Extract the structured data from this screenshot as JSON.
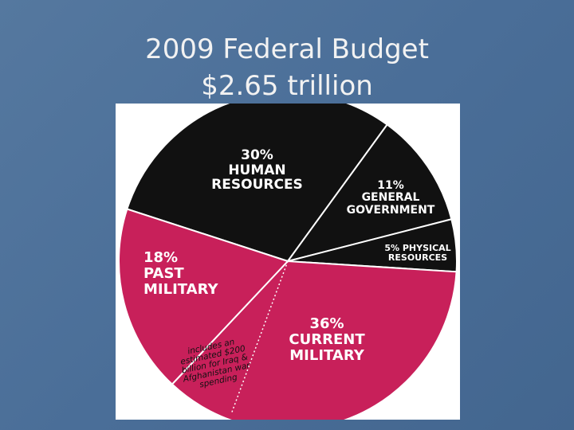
{
  "chart_data": {
    "type": "pie",
    "title": "2009 Federal Budget",
    "subtitle": "$2.65 trillion",
    "categories": [
      "HUMAN RESOURCES",
      "GENERAL GOVERNMENT",
      "PHYSICAL RESOURCES",
      "CURRENT MILITARY",
      "PAST MILITARY"
    ],
    "values": [
      30,
      11,
      5,
      36,
      18
    ],
    "value_labels": [
      "30%",
      "11%",
      "5%",
      "36%",
      "18%"
    ],
    "colors": [
      "#111111",
      "#111111",
      "#111111",
      "#c8205a",
      "#c8205a"
    ],
    "annotation": "includes an estimated $200 billion for Iraq & Afghanistan war spending"
  }
}
